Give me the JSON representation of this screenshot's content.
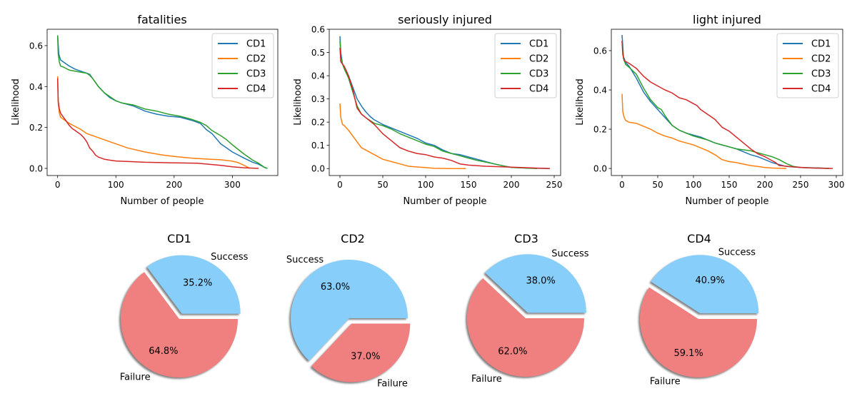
{
  "colors": {
    "CD1": "#1f77b4",
    "CD2": "#ff7f0e",
    "CD3": "#2ca02c",
    "CD4": "#d62728",
    "success": "#87cefa",
    "failure": "#f08080"
  },
  "chart_data": [
    {
      "type": "line",
      "title": "fatalities",
      "xlabel": "Number of people",
      "ylabel": "Likelihood",
      "xlim": [
        -18,
        378
      ],
      "ylim": [
        -0.035,
        0.68
      ],
      "xticks": [
        0,
        100,
        200,
        300
      ],
      "xtick_labels": [
        "0",
        "100",
        "200",
        "300"
      ],
      "yticks": [
        0.0,
        0.2,
        0.4,
        0.6
      ],
      "ytick_labels": [
        "0.0",
        "0.2",
        "0.4",
        "0.6"
      ],
      "grid": false,
      "legend": "top-right",
      "series": [
        {
          "name": "CD1",
          "x": [
            0,
            2,
            5,
            10,
            20,
            30,
            40,
            50,
            55,
            60,
            70,
            80,
            90,
            100,
            110,
            130,
            150,
            170,
            190,
            210,
            230,
            245,
            255,
            265,
            280,
            290,
            300,
            320,
            335,
            345,
            355,
            360
          ],
          "y": [
            0.65,
            0.56,
            0.53,
            0.52,
            0.5,
            0.485,
            0.475,
            0.465,
            0.46,
            0.44,
            0.4,
            0.37,
            0.345,
            0.33,
            0.32,
            0.305,
            0.28,
            0.265,
            0.255,
            0.25,
            0.235,
            0.22,
            0.19,
            0.17,
            0.12,
            0.1,
            0.08,
            0.05,
            0.03,
            0.02,
            0.005,
            0.0
          ]
        },
        {
          "name": "CD2",
          "x": [
            0,
            1,
            3,
            5,
            10,
            20,
            30,
            40,
            50,
            60,
            80,
            100,
            120,
            150,
            180,
            200,
            230,
            260,
            280,
            300,
            310,
            320,
            330
          ],
          "y": [
            0.45,
            0.32,
            0.27,
            0.25,
            0.24,
            0.22,
            0.205,
            0.19,
            0.17,
            0.16,
            0.14,
            0.12,
            0.1,
            0.08,
            0.065,
            0.058,
            0.05,
            0.045,
            0.042,
            0.035,
            0.028,
            0.015,
            0.0
          ]
        },
        {
          "name": "CD3",
          "x": [
            0,
            1,
            3,
            5,
            10,
            20,
            30,
            40,
            50,
            55,
            60,
            70,
            80,
            90,
            100,
            110,
            130,
            150,
            170,
            190,
            210,
            230,
            245,
            255,
            265,
            280,
            290,
            300,
            320,
            335,
            345,
            355,
            360
          ],
          "y": [
            0.65,
            0.56,
            0.52,
            0.5,
            0.495,
            0.48,
            0.475,
            0.47,
            0.465,
            0.455,
            0.44,
            0.4,
            0.37,
            0.35,
            0.33,
            0.32,
            0.31,
            0.29,
            0.28,
            0.265,
            0.255,
            0.24,
            0.225,
            0.21,
            0.185,
            0.16,
            0.14,
            0.115,
            0.07,
            0.04,
            0.025,
            0.005,
            0.0
          ]
        },
        {
          "name": "CD4",
          "x": [
            0,
            1,
            3,
            5,
            10,
            15,
            20,
            25,
            30,
            40,
            45,
            50,
            55,
            60,
            65,
            70,
            80,
            90,
            100,
            150,
            200,
            240,
            260,
            280,
            300,
            320,
            345
          ],
          "y": [
            0.44,
            0.33,
            0.29,
            0.27,
            0.25,
            0.23,
            0.21,
            0.195,
            0.185,
            0.165,
            0.15,
            0.13,
            0.1,
            0.085,
            0.065,
            0.055,
            0.045,
            0.04,
            0.036,
            0.03,
            0.027,
            0.025,
            0.02,
            0.015,
            0.008,
            0.003,
            0.0
          ]
        }
      ]
    },
    {
      "type": "line",
      "title": "seriously injured",
      "xlabel": "Number of people",
      "ylabel": "Likelihood",
      "xlim": [
        -12.5,
        257.5
      ],
      "ylim": [
        -0.03,
        0.6
      ],
      "xticks": [
        0,
        50,
        100,
        150,
        200,
        250
      ],
      "xtick_labels": [
        "0",
        "50",
        "100",
        "150",
        "200",
        "250"
      ],
      "yticks": [
        0.0,
        0.1,
        0.2,
        0.3,
        0.4,
        0.5,
        0.6
      ],
      "ytick_labels": [
        "0.0",
        "0.1",
        "0.2",
        "0.3",
        "0.4",
        "0.5",
        "0.6"
      ],
      "grid": false,
      "legend": "top-right",
      "series": [
        {
          "name": "CD1",
          "x": [
            0,
            1,
            3,
            5,
            10,
            15,
            20,
            25,
            30,
            35,
            40,
            50,
            60,
            70,
            80,
            90,
            100,
            110,
            120,
            130,
            140,
            150,
            160,
            170,
            180,
            190,
            200,
            220,
            245
          ],
          "y": [
            0.57,
            0.5,
            0.45,
            0.44,
            0.4,
            0.35,
            0.3,
            0.27,
            0.245,
            0.225,
            0.21,
            0.19,
            0.175,
            0.16,
            0.145,
            0.13,
            0.11,
            0.1,
            0.08,
            0.065,
            0.06,
            0.05,
            0.04,
            0.03,
            0.02,
            0.012,
            0.005,
            0.002,
            0.0
          ]
        },
        {
          "name": "CD2",
          "x": [
            0,
            1,
            3,
            5,
            10,
            15,
            20,
            25,
            30,
            40,
            50,
            60,
            70,
            80,
            90,
            100,
            110,
            130,
            147
          ],
          "y": [
            0.28,
            0.22,
            0.19,
            0.185,
            0.165,
            0.14,
            0.115,
            0.09,
            0.08,
            0.06,
            0.04,
            0.03,
            0.02,
            0.01,
            0.007,
            0.004,
            0.001,
            0.0,
            0.0
          ]
        },
        {
          "name": "CD3",
          "x": [
            0,
            1,
            3,
            5,
            10,
            15,
            20,
            25,
            30,
            40,
            50,
            60,
            70,
            80,
            90,
            100,
            110,
            120,
            130,
            140,
            150,
            160,
            170,
            180,
            190,
            200,
            230
          ],
          "y": [
            0.55,
            0.48,
            0.45,
            0.43,
            0.39,
            0.33,
            0.27,
            0.235,
            0.22,
            0.195,
            0.185,
            0.17,
            0.15,
            0.135,
            0.12,
            0.105,
            0.095,
            0.075,
            0.065,
            0.055,
            0.045,
            0.035,
            0.028,
            0.02,
            0.012,
            0.005,
            0.0
          ]
        },
        {
          "name": "CD4",
          "x": [
            0,
            1,
            3,
            5,
            10,
            15,
            20,
            25,
            30,
            40,
            45,
            50,
            60,
            70,
            80,
            90,
            100,
            110,
            120,
            130,
            140,
            150,
            170,
            200,
            245
          ],
          "y": [
            0.52,
            0.46,
            0.45,
            0.44,
            0.4,
            0.34,
            0.26,
            0.235,
            0.22,
            0.19,
            0.17,
            0.15,
            0.12,
            0.09,
            0.075,
            0.065,
            0.06,
            0.05,
            0.045,
            0.035,
            0.02,
            0.015,
            0.01,
            0.006,
            0.0
          ]
        }
      ]
    },
    {
      "type": "line",
      "title": "light injured",
      "xlabel": "Number of people",
      "ylabel": "Likelihood",
      "xlim": [
        -15,
        309
      ],
      "ylim": [
        -0.036,
        0.709
      ],
      "xticks": [
        0,
        50,
        100,
        150,
        200,
        250,
        300
      ],
      "xtick_labels": [
        "0",
        "50",
        "100",
        "150",
        "200",
        "250",
        "300"
      ],
      "yticks": [
        0.0,
        0.2,
        0.4,
        0.6
      ],
      "ytick_labels": [
        "0.0",
        "0.2",
        "0.4",
        "0.6"
      ],
      "grid": false,
      "legend": "top-right",
      "series": [
        {
          "name": "CD1",
          "x": [
            0,
            2,
            5,
            10,
            20,
            30,
            40,
            50,
            60,
            70,
            80,
            90,
            100,
            110,
            120,
            130,
            140,
            150,
            160,
            170,
            180,
            190,
            200,
            210,
            220,
            230,
            250,
            280,
            290
          ],
          "y": [
            0.68,
            0.57,
            0.54,
            0.52,
            0.46,
            0.39,
            0.34,
            0.3,
            0.26,
            0.22,
            0.195,
            0.18,
            0.17,
            0.16,
            0.145,
            0.13,
            0.12,
            0.11,
            0.1,
            0.085,
            0.07,
            0.06,
            0.045,
            0.03,
            0.02,
            0.01,
            0.005,
            0.002,
            0.0
          ]
        },
        {
          "name": "CD2",
          "x": [
            0,
            1,
            3,
            5,
            10,
            20,
            30,
            40,
            50,
            60,
            70,
            80,
            90,
            100,
            110,
            120,
            130,
            140,
            150,
            160,
            170,
            180,
            190,
            200,
            210,
            230
          ],
          "y": [
            0.38,
            0.29,
            0.26,
            0.245,
            0.235,
            0.23,
            0.215,
            0.2,
            0.18,
            0.165,
            0.155,
            0.14,
            0.13,
            0.12,
            0.105,
            0.09,
            0.07,
            0.045,
            0.035,
            0.03,
            0.022,
            0.015,
            0.01,
            0.005,
            0.002,
            0.0
          ]
        },
        {
          "name": "CD3",
          "x": [
            0,
            2,
            5,
            10,
            20,
            30,
            40,
            50,
            55,
            60,
            70,
            80,
            90,
            100,
            110,
            120,
            130,
            140,
            150,
            160,
            170,
            180,
            190,
            200,
            210,
            220,
            230,
            240,
            250,
            270,
            290
          ],
          "y": [
            0.65,
            0.56,
            0.53,
            0.515,
            0.48,
            0.41,
            0.35,
            0.31,
            0.3,
            0.27,
            0.22,
            0.195,
            0.18,
            0.165,
            0.155,
            0.145,
            0.13,
            0.12,
            0.11,
            0.1,
            0.095,
            0.09,
            0.08,
            0.07,
            0.06,
            0.045,
            0.025,
            0.01,
            0.005,
            0.002,
            0.0
          ]
        },
        {
          "name": "CD4",
          "x": [
            0,
            1,
            3,
            5,
            10,
            20,
            25,
            30,
            40,
            50,
            60,
            70,
            80,
            90,
            100,
            105,
            110,
            120,
            130,
            140,
            150,
            160,
            170,
            180,
            190,
            200,
            210,
            215,
            220,
            240,
            260,
            295
          ],
          "y": [
            0.65,
            0.58,
            0.55,
            0.545,
            0.535,
            0.51,
            0.49,
            0.47,
            0.44,
            0.42,
            0.4,
            0.385,
            0.36,
            0.35,
            0.33,
            0.32,
            0.3,
            0.275,
            0.25,
            0.21,
            0.19,
            0.16,
            0.13,
            0.1,
            0.075,
            0.06,
            0.04,
            0.03,
            0.015,
            0.008,
            0.003,
            0.0
          ]
        }
      ]
    },
    {
      "type": "pie",
      "title": "CD1",
      "labels": [
        "Success",
        "Failure"
      ],
      "values": [
        35.2,
        64.8
      ],
      "value_labels": [
        "35.2%",
        "64.8%"
      ],
      "explode": [
        0.1,
        0
      ],
      "shadow": true
    },
    {
      "type": "pie",
      "title": "CD2",
      "labels": [
        "Success",
        "Failure"
      ],
      "values": [
        63.0,
        37.0
      ],
      "value_labels": [
        "63.0%",
        "37.0%"
      ],
      "explode": [
        0,
        0.1
      ],
      "shadow": true
    },
    {
      "type": "pie",
      "title": "CD3",
      "labels": [
        "Success",
        "Failure"
      ],
      "values": [
        38.0,
        62.0
      ],
      "value_labels": [
        "38.0%",
        "62.0%"
      ],
      "explode": [
        0.1,
        0
      ],
      "shadow": true
    },
    {
      "type": "pie",
      "title": "CD4",
      "labels": [
        "Success",
        "Failure"
      ],
      "values": [
        40.9,
        59.1
      ],
      "value_labels": [
        "40.9%",
        "59.1%"
      ],
      "explode": [
        0.1,
        0
      ],
      "shadow": true
    }
  ]
}
